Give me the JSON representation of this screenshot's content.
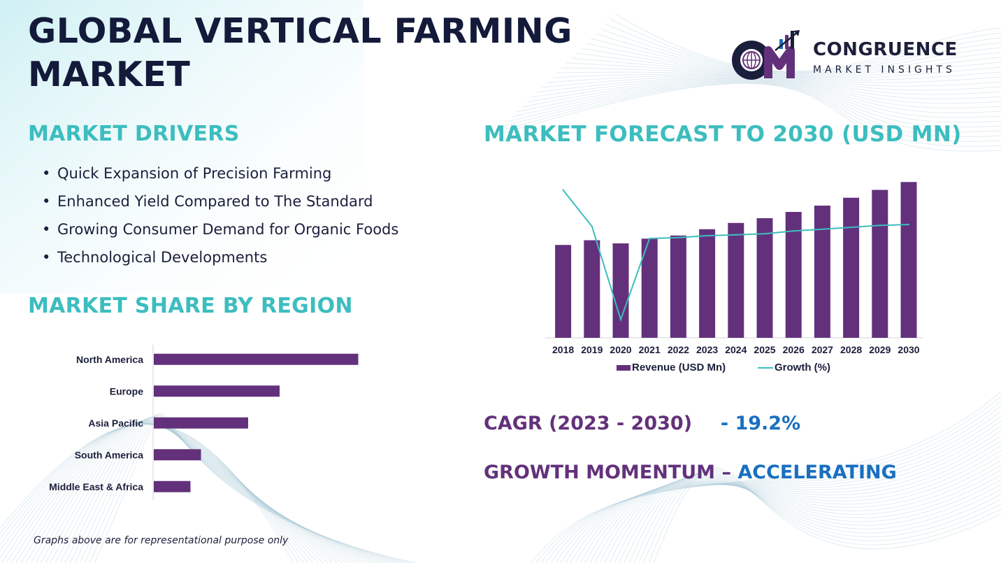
{
  "title": {
    "line1": "GLOBAL VERTICAL FARMING",
    "line2": "MARKET"
  },
  "logo": {
    "name": "CONGRUENCE",
    "subtitle": "MARKET INSIGHTS"
  },
  "drivers": {
    "heading": "MARKET DRIVERS",
    "items": [
      "Quick Expansion of Precision Farming",
      "Enhanced Yield Compared to The Standard",
      "Growing Consumer Demand for Organic Foods",
      "Technological Developments"
    ]
  },
  "region": {
    "heading": "MARKET SHARE BY REGION"
  },
  "forecast": {
    "heading": "MARKET FORECAST TO 2030 (USD MN)"
  },
  "cagr": {
    "label": "CAGR (2023 - 2030)",
    "value": "- 19.2%"
  },
  "momentum": {
    "label": "GROWTH MOMENTUM –",
    "value": "ACCELERATING"
  },
  "note": "Graphs above are for representational purpose only",
  "colors": {
    "bar": "#63317b",
    "line": "#3dbdbf",
    "heading": "#3dbdbf",
    "title": "#131a3a",
    "accent_blue": "#1a6fc0"
  },
  "chart_data": [
    {
      "type": "bar",
      "orientation": "horizontal",
      "categories": [
        "North America",
        "Europe",
        "Asia Pacific",
        "South America",
        "Middle East & Africa"
      ],
      "values": [
        39,
        24,
        18,
        9,
        7
      ],
      "grid": false
    },
    {
      "type": "bar",
      "categories": [
        "2018",
        "2019",
        "2020",
        "2021",
        "2022",
        "2023",
        "2024",
        "2025",
        "2026",
        "2027",
        "2028",
        "2029",
        "2030"
      ],
      "series": [
        {
          "name": "Revenue (USD Mn)",
          "type": "bar",
          "values": [
            59,
            62,
            60,
            63,
            65,
            69,
            73,
            76,
            80,
            84,
            89,
            94,
            99
          ]
        },
        {
          "name": "Growth (%)",
          "type": "line",
          "values": [
            10.0,
            6.1,
            -3.9,
            4.8,
            4.9,
            5.1,
            5.2,
            5.3,
            5.6,
            5.8,
            6.0,
            6.2,
            6.3
          ]
        }
      ],
      "legend": "bottom",
      "grid": false
    }
  ]
}
